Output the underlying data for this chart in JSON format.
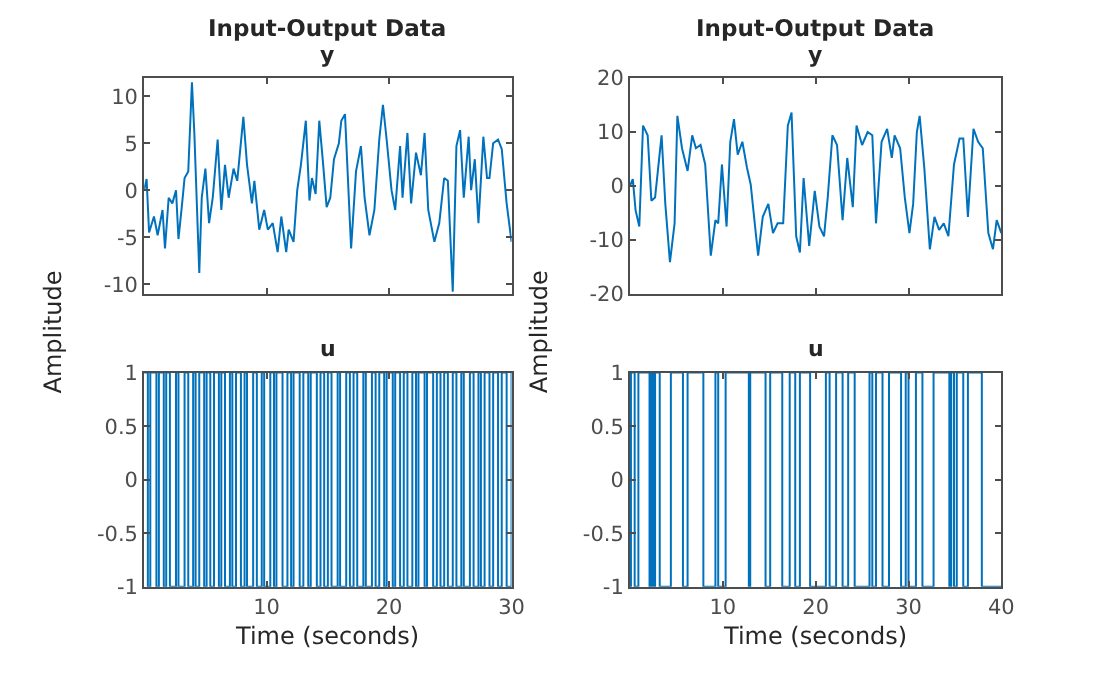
{
  "chart_data": [
    {
      "type": "line",
      "title": "Input-Output Data",
      "subtitle": "y",
      "color": "#0072bd",
      "x": [
        0,
        0.2,
        0.4,
        0.8,
        1.1,
        1.5,
        1.7,
        2.0,
        2.3,
        2.6,
        2.8,
        3.1,
        3.3,
        3.6,
        3.9,
        4.1,
        4.5,
        4.7,
        5.0,
        5.3,
        5.6,
        6.0,
        6.3,
        6.6,
        6.9,
        7.3,
        7.6,
        8.1,
        8.4,
        8.8,
        9.0,
        9.4,
        9.8,
        10.1,
        10.5,
        10.9,
        11.2,
        11.6,
        11.8,
        12.2,
        12.5,
        12.8,
        13.2,
        13.5,
        13.7,
        14.0,
        14.3,
        14.6,
        14.9,
        15.2,
        15.5,
        15.9,
        16.1,
        16.4,
        16.9,
        17.3,
        17.7,
        18.0,
        18.4,
        18.8,
        19.2,
        19.5,
        19.8,
        20.2,
        20.5,
        20.9,
        21.1,
        21.5,
        21.8,
        22.2,
        22.6,
        22.9,
        23.2,
        23.7,
        24.1,
        24.5,
        24.8,
        25.2,
        25.5,
        25.8,
        26.1,
        26.5,
        26.7,
        27.0,
        27.3,
        27.7,
        28.0,
        28.2,
        28.5,
        28.9,
        29.2,
        29.6,
        30
      ],
      "values": [
        0,
        1.2,
        -4.5,
        -2.8,
        -4.8,
        -2.1,
        -6.2,
        -0.8,
        -1.4,
        0,
        -5.2,
        -1.4,
        1.3,
        2,
        11.5,
        6,
        -8.8,
        -0.8,
        2.3,
        -3.5,
        -0.8,
        5.4,
        -2.1,
        2.7,
        -0.8,
        2.3,
        1,
        7.8,
        2.7,
        -1.4,
        1,
        -4.2,
        -2.1,
        -4.2,
        -3.5,
        -6.6,
        -2.8,
        -6.6,
        -4.2,
        -5.5,
        0,
        2.7,
        7.4,
        -1.1,
        1.3,
        -0.4,
        7.4,
        3,
        -1.8,
        -0.8,
        3.3,
        5,
        7.4,
        8.1,
        -6.2,
        2,
        4.7,
        -0.8,
        -4.8,
        -2.1,
        5.4,
        9.1,
        5.4,
        0,
        -2.1,
        4.7,
        -0.8,
        6.1,
        -1.4,
        4,
        1.6,
        6.1,
        -2.1,
        -5.5,
        -3.5,
        1.3,
        1,
        -10.8,
        4.7,
        6.4,
        -0.8,
        5.7,
        0,
        3.3,
        -3.5,
        5.7,
        1.3,
        1.3,
        5,
        5.4,
        4.4,
        -1.4,
        -5.5
      ],
      "xlim": [
        0,
        30
      ],
      "xticks": [
        {
          "value": 10,
          "label": null
        },
        {
          "value": 20,
          "label": null
        },
        {
          "value": 30,
          "label": null
        }
      ],
      "ylim": [
        -11,
        12
      ],
      "yticks": [
        -10,
        -5,
        0,
        5,
        10
      ],
      "tick_labels": "y",
      "marker": "none",
      "line_style": "solid"
    },
    {
      "type": "line",
      "title": "Input-Output Data",
      "subtitle": "y",
      "color": "#0072bd",
      "x": [
        0,
        0.3,
        0.6,
        1.0,
        1.4,
        1.9,
        2.3,
        2.7,
        3.0,
        3.4,
        3.8,
        4.3,
        4.8,
        5.1,
        5.6,
        6.2,
        6.7,
        7.1,
        7.6,
        8.1,
        8.7,
        9.2,
        9.5,
        9.9,
        10.4,
        10.8,
        11.2,
        11.6,
        12.1,
        12.6,
        13.0,
        13.8,
        14.3,
        14.9,
        15.4,
        15.9,
        16.5,
        17.0,
        17.4,
        17.9,
        18.3,
        18.7,
        19.3,
        19.9,
        20.4,
        20.9,
        21.3,
        21.8,
        22.3,
        22.9,
        23.4,
        24.0,
        24.4,
        25.0,
        25.6,
        26.1,
        26.5,
        27.1,
        27.7,
        28.2,
        28.5,
        29.1,
        29.6,
        30.1,
        30.5,
        30.9,
        31.2,
        31.7,
        32.3,
        32.8,
        33.3,
        33.8,
        34.3,
        34.9,
        35.5,
        35.9,
        36.4,
        37.0,
        37.5,
        38.0,
        38.6,
        39.1,
        39.5,
        40
      ],
      "values": [
        0,
        1.2,
        -4.6,
        -7.6,
        11.1,
        9.3,
        -2.8,
        -2.2,
        2.7,
        9.3,
        -3.4,
        -14.2,
        -7,
        12.9,
        6.9,
        2.7,
        9.3,
        6.9,
        7.5,
        3.9,
        -13,
        -6.4,
        -7,
        3.9,
        -7.6,
        8.1,
        12.3,
        5.7,
        8.1,
        3.3,
        0.2,
        -13,
        -5.8,
        -3.4,
        -8.8,
        -7,
        -7,
        11.1,
        13.5,
        -9.4,
        -12.4,
        1.4,
        -11.2,
        -1,
        -7.6,
        -9.4,
        -2.2,
        9.3,
        7.5,
        -6.4,
        5.1,
        -4,
        11.1,
        7.5,
        9.9,
        9.3,
        -7,
        8.1,
        10.5,
        5.1,
        9.3,
        6.9,
        -2.2,
        -8.8,
        -3.4,
        9.9,
        12.9,
        3.3,
        -11.8,
        -5.8,
        -8.2,
        -7,
        -9.4,
        3.9,
        8.7,
        8.7,
        -5.8,
        10.5,
        8.1,
        6.9,
        -8.8,
        -11.8,
        -6.4,
        -8.8
      ],
      "xlim": [
        0,
        40
      ],
      "xticks": [
        {
          "value": 10,
          "label": null
        },
        {
          "value": 20,
          "label": null
        },
        {
          "value": 30,
          "label": null
        },
        {
          "value": 40,
          "label": null
        }
      ],
      "ylim": [
        -20,
        20
      ],
      "yticks": [
        -20,
        -10,
        0,
        10,
        20
      ],
      "tick_labels": "y",
      "marker": "none",
      "line_style": "solid"
    },
    {
      "type": "step",
      "title": "u",
      "xlabel": "Time (seconds)",
      "ylabel": "Amplitude",
      "color": "#0072bd",
      "x": [
        0,
        0.3,
        0.5,
        1.0,
        1.2,
        1.6,
        1.8,
        2.1,
        2.6,
        2.8,
        3.3,
        3.6,
        4.0,
        4.2,
        4.5,
        4.9,
        5.1,
        5.4,
        5.7,
        6.1,
        6.3,
        6.6,
        7.0,
        7.2,
        7.5,
        7.9,
        8.2,
        8.4,
        8.9,
        9.2,
        9.6,
        9.8,
        10.3,
        10.6,
        10.8,
        11.3,
        11.7,
        12.0,
        12.2,
        12.7,
        13.0,
        13.4,
        13.6,
        14.1,
        14.4,
        14.7,
        15.0,
        15.3,
        15.8,
        16.0,
        16.5,
        16.8,
        17.1,
        17.4,
        17.9,
        18.1,
        18.6,
        18.9,
        19.2,
        19.6,
        19.8,
        20.3,
        20.5,
        20.9,
        21.2,
        21.5,
        21.9,
        22.2,
        22.4,
        22.9,
        23.1,
        23.6,
        23.9,
        24.2,
        24.5,
        24.8,
        25.2,
        25.5,
        25.9,
        26.1,
        26.6,
        26.9,
        27.3,
        27.5,
        27.8,
        28.2,
        28.5,
        28.9,
        29.2,
        29.6,
        30
      ],
      "values": [
        1,
        -1,
        1,
        -1,
        1,
        -1,
        1,
        -1,
        1,
        -1,
        1,
        -1,
        1,
        -1,
        1,
        -1,
        1,
        -1,
        1,
        -1,
        1,
        -1,
        1,
        -1,
        1,
        -1,
        1,
        -1,
        1,
        -1,
        1,
        -1,
        1,
        -1,
        1,
        -1,
        1,
        -1,
        1,
        -1,
        1,
        -1,
        1,
        -1,
        1,
        -1,
        1,
        -1,
        1,
        -1,
        1,
        -1,
        1,
        -1,
        1,
        -1,
        1,
        -1,
        1,
        -1,
        1,
        -1,
        1,
        -1,
        1,
        -1,
        1,
        -1,
        1,
        -1,
        1,
        -1,
        1,
        -1,
        1,
        -1,
        1,
        -1,
        1,
        -1,
        1,
        -1,
        1,
        -1,
        1,
        -1,
        1,
        -1,
        1,
        -1,
        1
      ],
      "xlim": [
        0,
        30
      ],
      "xticks": [
        10,
        20,
        30
      ],
      "ylim": [
        -1,
        1
      ],
      "yticks": [
        -1,
        -0.5,
        0,
        0.5,
        1
      ],
      "marker": "none",
      "line_style": "solid"
    },
    {
      "type": "step",
      "title": "u",
      "xlabel": "Time (seconds)",
      "ylabel": "Amplitude",
      "color": "#0072bd",
      "x": [
        0,
        0.1,
        0.5,
        0.9,
        2.1,
        2.3,
        2.5,
        2.7,
        3.2,
        4.4,
        5.7,
        6.2,
        7.9,
        9.2,
        9.5,
        10.3,
        12.8,
        12.95,
        14.6,
        15.1,
        16.4,
        17.2,
        17.8,
        18.3,
        19.4,
        21.1,
        21.5,
        22.2,
        22.9,
        23.5,
        24.2,
        25.8,
        26.1,
        26.5,
        27.2,
        27.9,
        29.2,
        29.7,
        30.0,
        30.8,
        31.5,
        32.7,
        34.4,
        34.6,
        34.9,
        35.2,
        35.9,
        36.4,
        37.9,
        40
      ],
      "values": [
        -1,
        1,
        -1,
        1,
        -1,
        1,
        -1,
        1,
        -1,
        1,
        -1,
        1,
        -1,
        1,
        -1,
        1,
        -1,
        1,
        -1,
        1,
        -1,
        1,
        -1,
        1,
        -1,
        1,
        -1,
        1,
        -1,
        1,
        -1,
        1,
        -1,
        1,
        -1,
        1,
        -1,
        1,
        -1,
        1,
        -1,
        1,
        -1,
        1,
        -1,
        1,
        -1,
        1,
        -1,
        -1
      ],
      "xlim": [
        0,
        40
      ],
      "xticks": [
        10,
        20,
        30,
        40
      ],
      "ylim": [
        -1,
        1
      ],
      "yticks": [
        -1,
        -0.5,
        0,
        0.5,
        1
      ],
      "marker": "none",
      "line_style": "solid"
    }
  ]
}
